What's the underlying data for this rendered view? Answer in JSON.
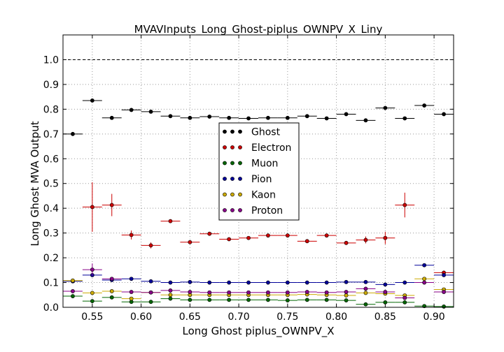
{
  "chart_data": {
    "type": "scatter",
    "title": "MVAVInputs_Long_Ghost-piplus_OWNPV_X_Liny",
    "xlabel": "Long Ghost piplus_OWNPV_X",
    "ylabel": "Long Ghost MVA Output",
    "xlim": [
      0.52,
      0.92
    ],
    "ylim": [
      0.0,
      1.1
    ],
    "x_ticks": [
      "0.55",
      "0.60",
      "0.65",
      "0.70",
      "0.75",
      "0.80",
      "0.85",
      "0.90"
    ],
    "y_ticks": [
      "0.0",
      "0.1",
      "0.2",
      "0.3",
      "0.4",
      "0.5",
      "0.6",
      "0.7",
      "0.8",
      "0.9",
      "1.0"
    ],
    "grid": true,
    "reference_line_y": 1.0,
    "legend_position": "center",
    "x": [
      0.53,
      0.55,
      0.57,
      0.59,
      0.61,
      0.63,
      0.65,
      0.67,
      0.69,
      0.71,
      0.73,
      0.75,
      0.77,
      0.79,
      0.81,
      0.83,
      0.85,
      0.87,
      0.89,
      0.91
    ],
    "bin_half_width": 0.01,
    "series": [
      {
        "name": "Ghost",
        "color": "#000000",
        "values": [
          0.7,
          0.835,
          0.765,
          0.797,
          0.79,
          0.772,
          0.765,
          0.77,
          0.765,
          0.763,
          0.765,
          0.765,
          0.772,
          0.763,
          0.78,
          0.755,
          0.805,
          0.763,
          0.815,
          0.78
        ],
        "errors": [
          0.008,
          0.004,
          0.004,
          0.004,
          0.004,
          0.003,
          0.003,
          0.003,
          0.003,
          0.003,
          0.003,
          0.003,
          0.003,
          0.003,
          0.004,
          0.004,
          0.004,
          0.004,
          0.005,
          0.005
        ]
      },
      {
        "name": "Electron",
        "color": "#cc0000",
        "values": [
          null,
          0.405,
          0.413,
          0.292,
          0.25,
          0.348,
          0.263,
          0.297,
          0.275,
          0.28,
          0.29,
          0.29,
          0.267,
          0.29,
          0.26,
          0.272,
          0.28,
          0.413,
          null,
          0.14
        ],
        "errors": [
          null,
          0.1,
          0.045,
          0.018,
          0.012,
          0.006,
          0.006,
          0.005,
          0.005,
          0.005,
          0.005,
          0.005,
          0.006,
          0.006,
          0.008,
          0.014,
          0.025,
          0.05,
          null,
          0.008
        ]
      },
      {
        "name": "Muon",
        "color": "#006600",
        "values": [
          0.045,
          0.025,
          0.04,
          0.022,
          0.022,
          0.035,
          0.03,
          0.03,
          0.03,
          0.03,
          0.03,
          0.028,
          0.03,
          0.03,
          0.028,
          0.012,
          0.02,
          0.02,
          0.005,
          0.003
        ],
        "errors": [
          0.004,
          0.003,
          0.003,
          0.002,
          0.002,
          0.002,
          0.002,
          0.002,
          0.002,
          0.002,
          0.002,
          0.002,
          0.002,
          0.002,
          0.002,
          0.002,
          0.003,
          0.003,
          0.002,
          0.002
        ]
      },
      {
        "name": "Pion",
        "color": "#000099",
        "values": [
          0.105,
          0.13,
          0.11,
          0.115,
          0.105,
          0.1,
          0.102,
          0.1,
          0.1,
          0.1,
          0.1,
          0.1,
          0.1,
          0.1,
          0.102,
          0.102,
          0.092,
          0.1,
          0.17,
          0.13
        ],
        "errors": [
          0.004,
          0.004,
          0.003,
          0.003,
          0.003,
          0.002,
          0.002,
          0.002,
          0.002,
          0.002,
          0.002,
          0.002,
          0.002,
          0.002,
          0.002,
          0.003,
          0.003,
          0.003,
          0.004,
          0.004
        ]
      },
      {
        "name": "Kaon",
        "color": "#ccaa00",
        "values": [
          0.108,
          0.058,
          0.065,
          0.035,
          0.06,
          0.05,
          0.05,
          0.05,
          0.05,
          0.05,
          0.05,
          0.05,
          0.052,
          0.05,
          0.048,
          0.058,
          0.055,
          0.048,
          0.115,
          0.072
        ],
        "errors": [
          0.004,
          0.003,
          0.003,
          0.003,
          0.003,
          0.002,
          0.002,
          0.002,
          0.002,
          0.002,
          0.002,
          0.002,
          0.002,
          0.002,
          0.002,
          0.003,
          0.003,
          0.003,
          0.004,
          0.004
        ]
      },
      {
        "name": "Proton",
        "color": "#880088",
        "values": [
          0.065,
          0.152,
          0.115,
          0.062,
          0.06,
          0.068,
          0.062,
          0.06,
          0.06,
          0.06,
          0.06,
          0.06,
          0.062,
          0.06,
          0.062,
          0.075,
          0.062,
          0.038,
          0.1,
          0.062
        ],
        "errors": [
          0.006,
          0.025,
          0.005,
          0.004,
          0.003,
          0.003,
          0.003,
          0.003,
          0.003,
          0.003,
          0.003,
          0.003,
          0.003,
          0.003,
          0.003,
          0.005,
          0.004,
          0.006,
          0.005,
          0.006
        ]
      }
    ]
  }
}
